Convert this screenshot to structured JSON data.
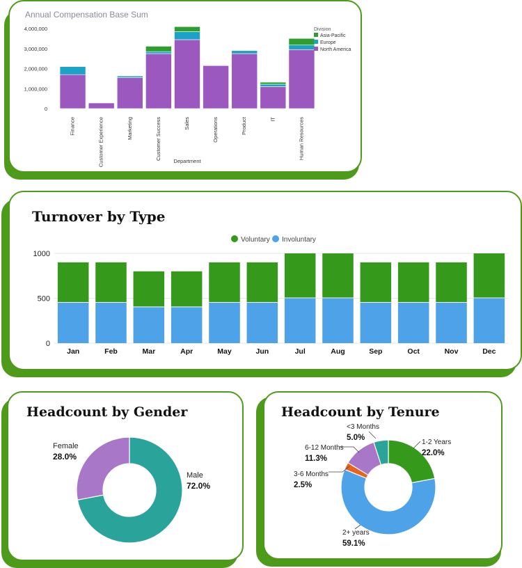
{
  "colors": {
    "card_border": "#4e9a1a",
    "asia_pacific": "#2f9e2f",
    "europe": "#1ba3c6",
    "north_america": "#9b59c0",
    "voluntary": "#359a1c",
    "involuntary": "#4ea3e8",
    "female": "#a877c8",
    "male": "#2aa39a",
    "tenure_lt3": "#2aa39a",
    "tenure_1_2": "#359a1c",
    "tenure_2plus": "#4ea3e8",
    "tenure_3_6": "#e8641c",
    "tenure_6_12": "#a877c8"
  },
  "chart_data": [
    {
      "id": "compensation",
      "type": "bar",
      "stacked": true,
      "title": "Annual Compensation Base Sum",
      "xlabel": "Department",
      "ylabel": "",
      "ylim": [
        0,
        4250000
      ],
      "yticks": [
        0,
        1000000,
        2000000,
        3000000,
        4000000
      ],
      "ytick_labels": [
        "0",
        "1,000,000",
        "2,000,000",
        "3,000,000",
        "4,000,000"
      ],
      "categories": [
        "Finance",
        "Customer Experience",
        "Marketing",
        "Customer Success",
        "Sales",
        "Operations",
        "Product",
        "IT",
        "Human Resources"
      ],
      "legend_title": "Division",
      "legend_position": "top-right",
      "series": [
        {
          "name": "North America",
          "values": [
            1700000,
            280000,
            1550000,
            2750000,
            3450000,
            2150000,
            2750000,
            1100000,
            2950000
          ]
        },
        {
          "name": "Europe",
          "values": [
            400000,
            0,
            80000,
            100000,
            400000,
            0,
            150000,
            120000,
            230000
          ]
        },
        {
          "name": "Asia-Pacific",
          "values": [
            0,
            0,
            0,
            270000,
            250000,
            0,
            0,
            100000,
            330000
          ]
        }
      ]
    },
    {
      "id": "turnover",
      "type": "bar",
      "stacked": true,
      "title": "Turnover by Type",
      "xlabel": "",
      "ylabel": "",
      "ylim": [
        0,
        1000
      ],
      "yticks": [
        0,
        500,
        1000
      ],
      "ytick_labels": [
        "0",
        "500",
        "1000"
      ],
      "categories": [
        "Jan",
        "Feb",
        "Mar",
        "Apr",
        "May",
        "Jun",
        "Jul",
        "Aug",
        "Sep",
        "Oct",
        "Nov",
        "Dec"
      ],
      "legend_position": "top",
      "series": [
        {
          "name": "Voluntary",
          "values": [
            450,
            450,
            400,
            400,
            450,
            450,
            500,
            500,
            450,
            450,
            450,
            500
          ]
        },
        {
          "name": "Involuntary",
          "values": [
            450,
            450,
            400,
            400,
            450,
            450,
            500,
            500,
            450,
            450,
            450,
            500
          ]
        }
      ]
    },
    {
      "id": "gender",
      "type": "pie",
      "donut": true,
      "title": "Headcount by Gender",
      "slices": [
        {
          "name": "Female",
          "value": 28.0,
          "label": "28.0%"
        },
        {
          "name": "Male",
          "value": 72.0,
          "label": "72.0%"
        }
      ]
    },
    {
      "id": "tenure",
      "type": "pie",
      "donut": true,
      "title": "Headcount by Tenure",
      "slices": [
        {
          "name": "1-2 Years",
          "value": 22.0,
          "label": "22.0%"
        },
        {
          "name": "2+ years",
          "value": 59.1,
          "label": "59.1%"
        },
        {
          "name": "3-6 Months",
          "value": 2.5,
          "label": "2.5%"
        },
        {
          "name": "6-12 Months",
          "value": 11.3,
          "label": "11.3%"
        },
        {
          "name": "<3 Months",
          "value": 5.0,
          "label": "5.0%"
        }
      ]
    }
  ]
}
